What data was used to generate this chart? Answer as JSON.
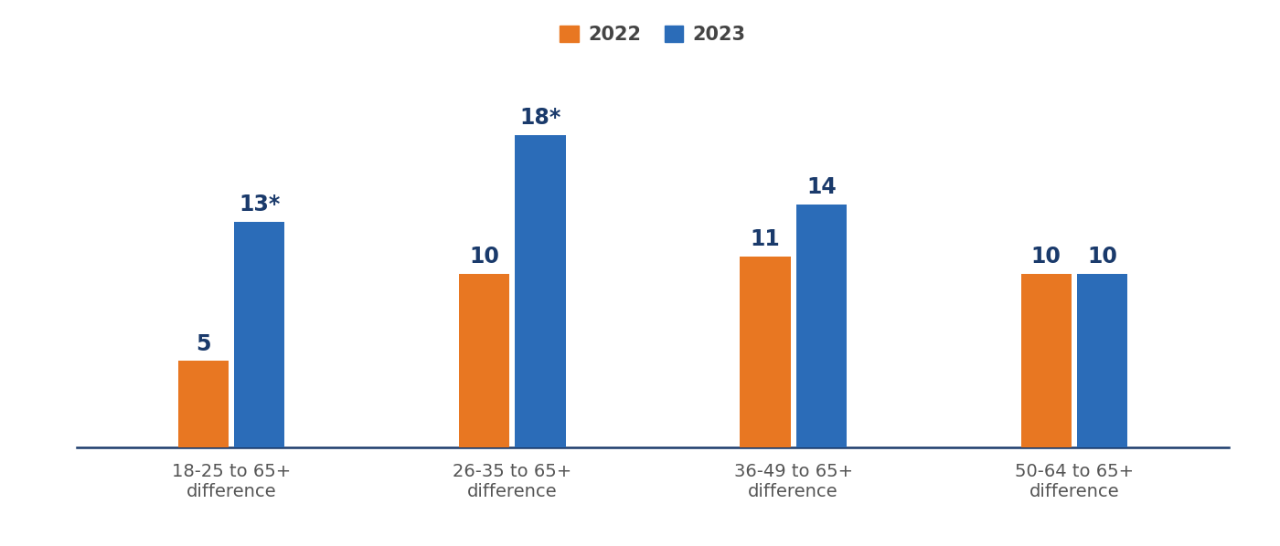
{
  "categories": [
    "18-25 to 65+\ndifference",
    "26-35 to 65+\ndifference",
    "36-49 to 65+\ndifference",
    "50-64 to 65+\ndifference"
  ],
  "values_2022": [
    5,
    10,
    11,
    10
  ],
  "values_2023": [
    13,
    18,
    14,
    10
  ],
  "labels_2022": [
    "5",
    "10",
    "11",
    "10"
  ],
  "labels_2023": [
    "13*",
    "18*",
    "14",
    "10"
  ],
  "color_2022": "#E87722",
  "color_2023": "#2B6CB8",
  "legend_label_2022": "2022",
  "legend_label_2023": "2023",
  "background_color": "#ffffff",
  "bar_width": 0.18,
  "ylim": [
    0,
    22
  ],
  "label_fontsize": 17,
  "tick_fontsize": 14,
  "legend_fontsize": 15,
  "label_color": "#1a3a6b",
  "tick_color": "#555555",
  "legend_text_color": "#444444",
  "spine_color": "#1a3a6b"
}
